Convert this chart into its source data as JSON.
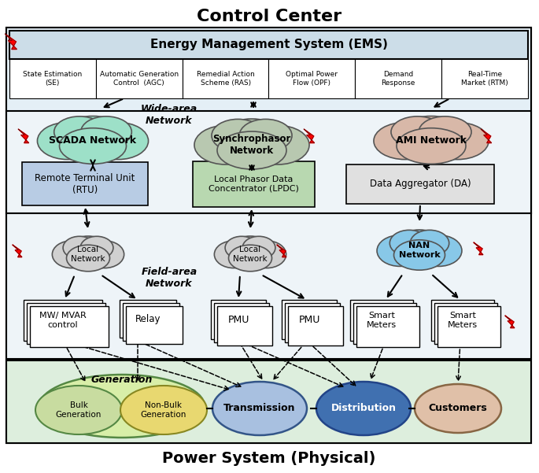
{
  "title_top": "Control Center",
  "title_bottom": "Power System (Physical)",
  "bg_color": "#ffffff",
  "ems_label": "Energy Management System (EMS)",
  "ems_bg": "#d8e8f0",
  "ems_sub": [
    "State Estimation\n(SE)",
    "Automatic Generation\nControl  (AGC)",
    "Remedial Action\nScheme (RAS)",
    "Optimal Power\nFlow (OPF)",
    "Demand\nResponse",
    "Real-Time\nMarket (RTM)"
  ],
  "wide_area_label": "Wide-area\nNetwork",
  "field_area_label": "Field-area\nNetwork",
  "scada_color": "#9de0c8",
  "synchro_color": "#b8c8b0",
  "ami_color": "#d8b8a8",
  "local_net_color": "#d0d0d0",
  "nan_color": "#88c8e8",
  "rtu_bg": "#b8cce4",
  "lpdc_bg": "#b8d8b0",
  "da_bg": "#e0e0e0",
  "phys_bg": "#ddeedd",
  "gen_outer_bg": "#d8eea8",
  "bulk_bg": "#c8dca0",
  "nonbulk_bg": "#e8d870",
  "trans_bg": "#a8c0e0",
  "dist_bg": "#4070b0",
  "cust_bg": "#e0c0a8"
}
